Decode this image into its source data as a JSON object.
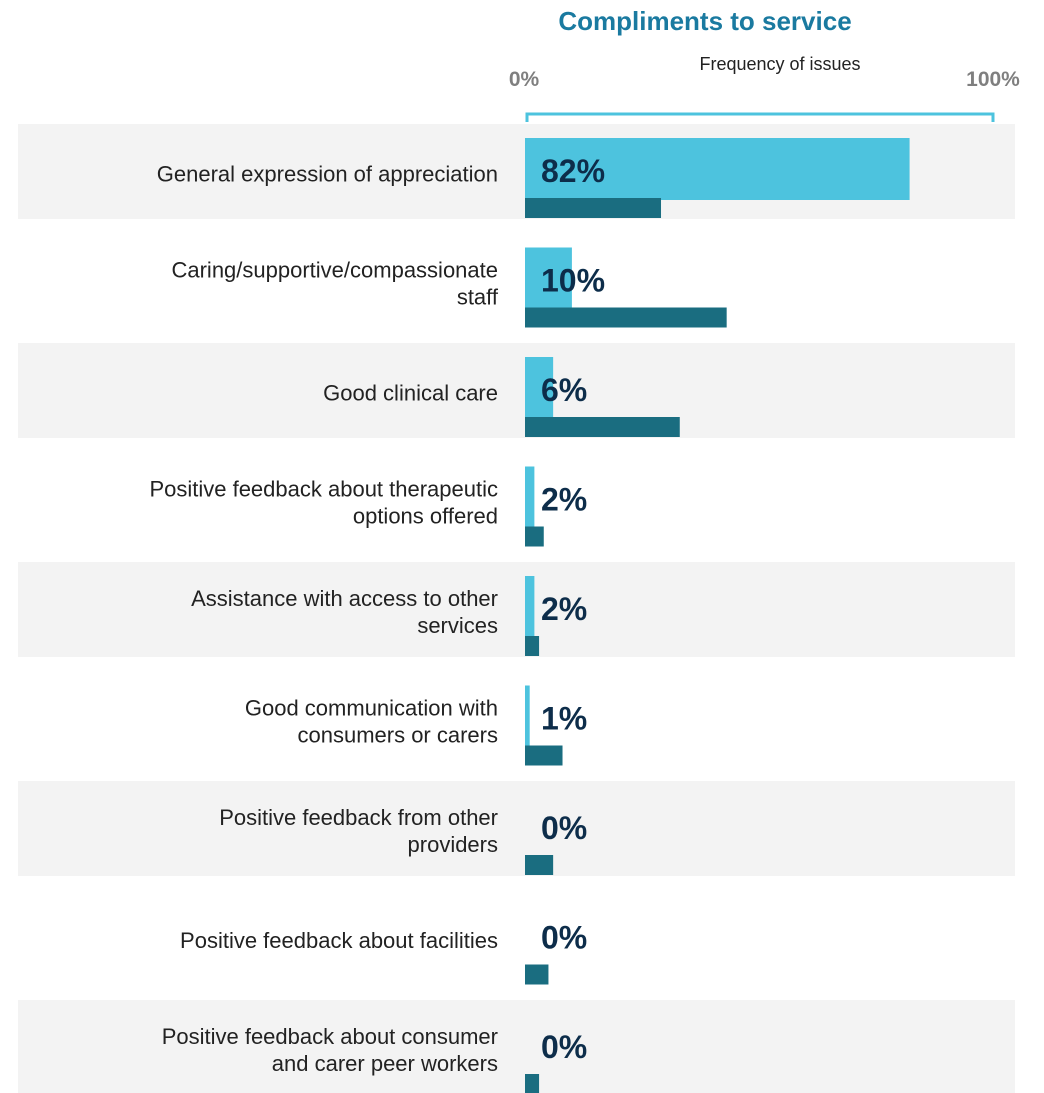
{
  "chart_data": {
    "type": "bar",
    "orientation": "horizontal",
    "title": "Compliments to service",
    "subtitle": "Frequency of issues",
    "xlim": [
      0,
      100
    ],
    "axis_labels": {
      "min": "0%",
      "max": "100%"
    },
    "categories": [
      [
        "General expression of appreciation"
      ],
      [
        "Caring/supportive/compassionate",
        "staff"
      ],
      [
        "Good clinical care"
      ],
      [
        "Positive feedback about therapeutic",
        "options offered"
      ],
      [
        "Assistance with access to other",
        "services"
      ],
      [
        "Good communication with",
        "consumers or carers"
      ],
      [
        "Positive feedback from other",
        "providers"
      ],
      [
        "Positive feedback about facilities"
      ],
      [
        "Positive feedback about consumer",
        "and carer peer workers"
      ]
    ],
    "series": [
      {
        "color": "#4dc3de",
        "values": [
          82,
          10,
          6,
          2,
          2,
          1,
          0,
          0,
          0
        ]
      },
      {
        "color": "#1a6d80",
        "values": [
          29,
          43,
          33,
          4,
          3,
          8,
          6,
          5,
          3
        ]
      }
    ],
    "data_labels": [
      "82%",
      "10%",
      "6%",
      "2%",
      "2%",
      "1%",
      "0%",
      "0%",
      "0%"
    ],
    "row_banding": "alternating grey",
    "colors": {
      "title": "#1a7aa0",
      "axis_text": "#7f7f7f",
      "text": "#222222",
      "value_text": "#0d2d4a",
      "band": "#f3f3f3",
      "bracket": "#4dc3de"
    }
  }
}
